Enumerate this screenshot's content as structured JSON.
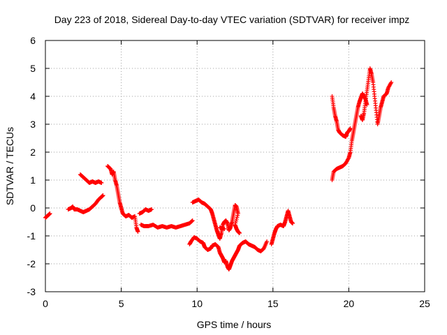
{
  "chart_data": {
    "type": "scatter",
    "title": "Day 223 of 2018, Sidereal Day-to-day VTEC variation (SDTVAR) for receiver impz",
    "xlabel": "GPS time / hours",
    "ylabel": "SDTVAR / TECUs",
    "xlim": [
      0,
      25
    ],
    "ylim": [
      -3,
      6
    ],
    "xticks": [
      "0",
      "5",
      "10",
      "15",
      "20",
      "25"
    ],
    "yticks": [
      "-3",
      "-2",
      "-1",
      "0",
      "1",
      "2",
      "3",
      "4",
      "5",
      "6"
    ],
    "grid": true,
    "marker": "plus",
    "color": "#ff0000",
    "series": [
      {
        "values": [
          [
            0.0,
            -0.35
          ],
          [
            0.1,
            -0.3
          ],
          [
            0.2,
            -0.25
          ],
          [
            0.3,
            -0.2
          ],
          [
            1.5,
            -0.05
          ],
          [
            1.7,
            0.0
          ],
          [
            1.8,
            0.05
          ],
          [
            1.9,
            -0.05
          ],
          [
            2.1,
            -0.05
          ],
          [
            2.3,
            -0.1
          ],
          [
            2.5,
            -0.15
          ],
          [
            2.7,
            -0.1
          ],
          [
            2.9,
            -0.05
          ],
          [
            3.1,
            0.05
          ],
          [
            3.3,
            0.15
          ],
          [
            3.5,
            0.3
          ],
          [
            3.7,
            0.4
          ],
          [
            3.8,
            0.45
          ],
          [
            2.3,
            1.2
          ],
          [
            2.5,
            1.1
          ],
          [
            2.7,
            1.0
          ],
          [
            2.9,
            0.9
          ],
          [
            3.1,
            0.95
          ],
          [
            3.3,
            0.9
          ],
          [
            3.5,
            0.95
          ],
          [
            3.7,
            0.9
          ],
          [
            4.1,
            1.5
          ],
          [
            4.3,
            1.4
          ],
          [
            4.4,
            1.2
          ],
          [
            4.5,
            1.3
          ],
          [
            4.6,
            1.0
          ],
          [
            4.7,
            0.8
          ],
          [
            4.8,
            0.5
          ],
          [
            4.9,
            0.2
          ],
          [
            5.0,
            0.0
          ],
          [
            5.1,
            -0.2
          ],
          [
            5.3,
            -0.3
          ],
          [
            5.5,
            -0.25
          ],
          [
            5.7,
            -0.35
          ],
          [
            5.9,
            -0.3
          ],
          [
            6.0,
            -0.7
          ],
          [
            6.1,
            -0.85
          ],
          [
            6.2,
            -0.2
          ],
          [
            6.4,
            -0.15
          ],
          [
            6.6,
            -0.05
          ],
          [
            6.8,
            -0.1
          ],
          [
            7.0,
            -0.05
          ],
          [
            6.3,
            -0.6
          ],
          [
            6.5,
            -0.65
          ],
          [
            6.8,
            -0.65
          ],
          [
            7.1,
            -0.6
          ],
          [
            7.4,
            -0.7
          ],
          [
            7.7,
            -0.65
          ],
          [
            8.0,
            -0.7
          ],
          [
            8.3,
            -0.65
          ],
          [
            8.6,
            -0.7
          ],
          [
            8.9,
            -0.65
          ],
          [
            9.2,
            -0.6
          ],
          [
            9.5,
            -0.55
          ],
          [
            9.7,
            -0.45
          ],
          [
            9.5,
            -1.3
          ],
          [
            9.6,
            -1.2
          ],
          [
            9.8,
            -1.05
          ],
          [
            10.0,
            -1.1
          ],
          [
            10.2,
            -1.2
          ],
          [
            10.4,
            -1.25
          ],
          [
            10.5,
            -1.4
          ],
          [
            10.7,
            -1.5
          ],
          [
            10.9,
            -1.45
          ],
          [
            11.0,
            -1.35
          ],
          [
            11.2,
            -1.3
          ],
          [
            11.4,
            -1.4
          ],
          [
            11.5,
            -1.6
          ],
          [
            11.6,
            -1.7
          ],
          [
            11.7,
            -1.8
          ],
          [
            11.8,
            -1.95
          ],
          [
            11.9,
            -1.9
          ],
          [
            12.0,
            -2.1
          ],
          [
            12.1,
            -2.2
          ],
          [
            12.2,
            -2.05
          ],
          [
            12.3,
            -1.9
          ],
          [
            12.4,
            -1.8
          ],
          [
            12.5,
            -1.7
          ],
          [
            12.6,
            -1.6
          ],
          [
            12.7,
            -1.5
          ],
          [
            12.8,
            -1.35
          ],
          [
            13.0,
            -1.25
          ],
          [
            13.2,
            -1.2
          ],
          [
            13.4,
            -1.3
          ],
          [
            13.6,
            -1.35
          ],
          [
            13.8,
            -1.4
          ],
          [
            14.0,
            -1.5
          ],
          [
            14.2,
            -1.55
          ],
          [
            14.4,
            -1.45
          ],
          [
            14.6,
            -1.2
          ],
          [
            9.7,
            0.2
          ],
          [
            9.9,
            0.25
          ],
          [
            10.1,
            0.3
          ],
          [
            10.3,
            0.2
          ],
          [
            10.5,
            0.15
          ],
          [
            10.7,
            0.05
          ],
          [
            10.9,
            -0.05
          ],
          [
            11.0,
            -0.2
          ],
          [
            11.1,
            -0.4
          ],
          [
            11.2,
            -0.6
          ],
          [
            11.3,
            -0.8
          ],
          [
            11.4,
            -0.95
          ],
          [
            11.5,
            -1.1
          ],
          [
            11.6,
            -0.9
          ],
          [
            11.7,
            -0.6
          ],
          [
            11.8,
            -0.5
          ],
          [
            11.9,
            -0.45
          ],
          [
            12.0,
            -0.55
          ],
          [
            12.1,
            -0.8
          ],
          [
            12.2,
            -0.7
          ],
          [
            12.3,
            -0.5
          ],
          [
            12.4,
            -0.2
          ],
          [
            12.5,
            0.1
          ],
          [
            12.6,
            0.05
          ],
          [
            12.7,
            -0.2
          ],
          [
            12.5,
            -0.6
          ],
          [
            12.6,
            -0.75
          ],
          [
            12.7,
            -0.85
          ],
          [
            12.8,
            -0.9
          ],
          [
            11.5,
            -0.7
          ],
          [
            11.8,
            -0.75
          ],
          [
            14.9,
            -1.3
          ],
          [
            15.0,
            -1.1
          ],
          [
            15.1,
            -0.9
          ],
          [
            15.2,
            -0.75
          ],
          [
            15.3,
            -0.65
          ],
          [
            15.5,
            -0.6
          ],
          [
            15.7,
            -0.65
          ],
          [
            15.8,
            -0.5
          ],
          [
            15.9,
            -0.3
          ],
          [
            16.0,
            -0.1
          ],
          [
            16.1,
            -0.3
          ],
          [
            16.2,
            -0.5
          ],
          [
            16.3,
            -0.55
          ],
          [
            18.9,
            4.0
          ],
          [
            19.0,
            3.6
          ],
          [
            19.1,
            3.3
          ],
          [
            19.2,
            3.1
          ],
          [
            19.3,
            2.8
          ],
          [
            19.4,
            2.7
          ],
          [
            19.6,
            2.6
          ],
          [
            19.8,
            2.55
          ],
          [
            19.9,
            2.7
          ],
          [
            20.0,
            2.75
          ],
          [
            20.1,
            2.85
          ],
          [
            18.9,
            1.0
          ],
          [
            19.0,
            1.3
          ],
          [
            19.2,
            1.4
          ],
          [
            19.4,
            1.45
          ],
          [
            19.6,
            1.5
          ],
          [
            19.8,
            1.6
          ],
          [
            20.0,
            1.8
          ],
          [
            20.1,
            2.0
          ],
          [
            20.2,
            2.4
          ],
          [
            20.3,
            2.7
          ],
          [
            20.4,
            3.0
          ],
          [
            20.5,
            3.3
          ],
          [
            20.6,
            3.6
          ],
          [
            20.7,
            3.8
          ],
          [
            20.8,
            3.95
          ],
          [
            20.9,
            4.1
          ],
          [
            21.0,
            4.0
          ],
          [
            21.1,
            3.9
          ],
          [
            21.2,
            3.7
          ],
          [
            20.8,
            3.3
          ],
          [
            20.9,
            3.15
          ],
          [
            21.0,
            3.4
          ],
          [
            21.1,
            3.8
          ],
          [
            21.2,
            4.2
          ],
          [
            21.3,
            4.6
          ],
          [
            21.4,
            5.0
          ],
          [
            21.5,
            4.8
          ],
          [
            21.6,
            4.5
          ],
          [
            21.7,
            4.0
          ],
          [
            21.8,
            3.5
          ],
          [
            21.9,
            3.0
          ],
          [
            22.0,
            3.3
          ],
          [
            22.1,
            3.6
          ],
          [
            22.2,
            3.8
          ],
          [
            22.3,
            4.0
          ],
          [
            22.5,
            4.1
          ],
          [
            22.6,
            4.3
          ],
          [
            22.8,
            4.5
          ]
        ]
      }
    ]
  }
}
